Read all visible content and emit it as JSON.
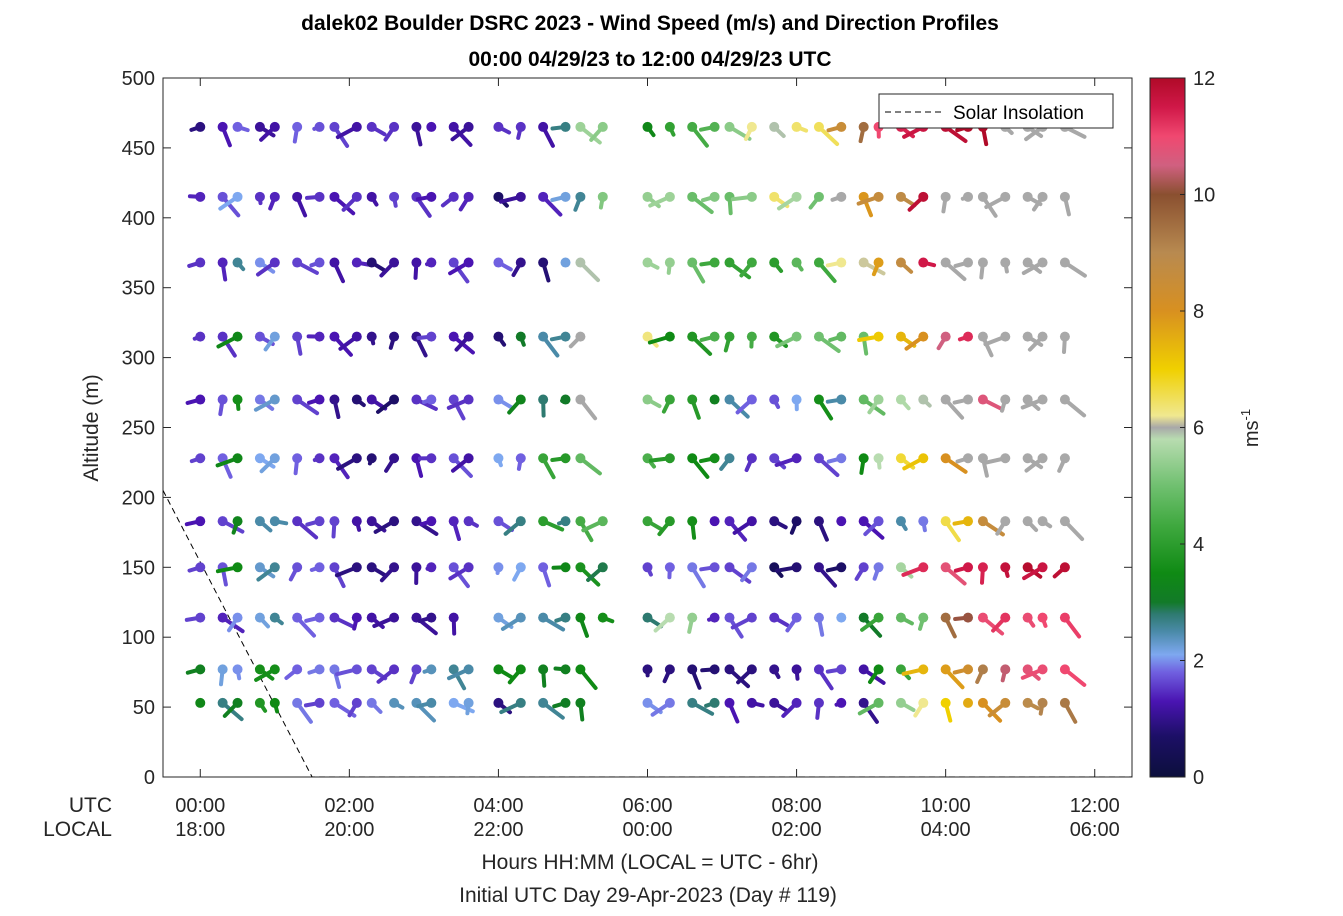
{
  "chart_data": {
    "type": "wind-barb profile",
    "title": "dalek02 Boulder DSRC 2023 - Wind Speed (m/s) and Direction Profiles",
    "subtitle": "00:00 04/29/23 to 12:00 04/29/23  UTC",
    "ylabel": "Altitude (m)",
    "xlabel": "Hours HH:MM  (LOCAL = UTC - 6hr)",
    "xlabel2": "Initial UTC Day 29-Apr-2023 (Day # 119)",
    "xrow_labels": [
      "UTC",
      "LOCAL"
    ],
    "ylim": [
      0,
      500
    ],
    "yticks": [
      0,
      50,
      100,
      150,
      200,
      250,
      300,
      350,
      400,
      450,
      500
    ],
    "xlim_hours": [
      -0.5,
      12.5
    ],
    "xticks_hours": [
      0,
      2,
      4,
      6,
      8,
      10,
      12
    ],
    "xticks_utc": [
      "00:00",
      "02:00",
      "04:00",
      "06:00",
      "08:00",
      "10:00",
      "12:00"
    ],
    "xticks_local": [
      "18:00",
      "20:00",
      "22:00",
      "00:00",
      "02:00",
      "04:00",
      "06:00"
    ],
    "legend": {
      "entry": "Solar Insolation",
      "placement": "top-right"
    },
    "colorbar": {
      "label": "ms-1",
      "range": [
        0,
        12
      ],
      "ticks": [
        0,
        2,
        4,
        6,
        8,
        10,
        12
      ]
    },
    "solar_insolation": {
      "x_hours": [
        -0.5,
        1.5,
        1.5,
        12.5
      ],
      "y_alt": [
        205,
        0,
        0,
        0
      ]
    },
    "levels_m": [
      53,
      77,
      114,
      150,
      183,
      228,
      270,
      315,
      368,
      415,
      465
    ],
    "profile_times_hours": [
      0.0,
      0.3,
      0.5,
      0.8,
      1.0,
      1.3,
      1.6,
      1.8,
      2.1,
      2.3,
      2.6,
      2.9,
      3.1,
      3.4,
      3.6,
      4.0,
      4.3,
      4.6,
      4.9,
      5.1,
      5.4,
      6.0,
      6.3,
      6.6,
      6.9,
      7.1,
      7.4,
      7.7,
      8.0,
      8.3,
      8.6,
      8.9,
      9.1,
      9.4,
      9.7,
      10.0,
      10.3,
      10.5,
      10.8,
      11.1,
      11.3,
      11.6
    ],
    "wind_speed_ms": [
      [
        3.4,
        2.7,
        3.2,
        3.8,
        3.5,
        1.9,
        1.6,
        1.8,
        1.6,
        1.9,
        2.4,
        2.4,
        2.5,
        2.1,
        2.2,
        0.9,
        2.7,
        2.6,
        3.1,
        3.2,
        null,
        2.0,
        1.9,
        2.7,
        2.8,
        1.3,
        1.2,
        1.1,
        1.4,
        1.5,
        1.3,
        1.0,
        4.8,
        5.4,
        6.2,
        7.0,
        7.6,
        8.0,
        8.5,
        8.9,
        9.1,
        9.3
      ],
      [
        3.2,
        2.2,
        2.0,
        3.6,
        3.6,
        1.8,
        1.9,
        1.9,
        1.7,
        1.6,
        1.5,
        1.6,
        2.4,
        2.6,
        2.5,
        3.5,
        3.5,
        3.2,
        3.2,
        3.5,
        null,
        0.9,
        0.9,
        0.8,
        0.8,
        0.9,
        0.9,
        1.0,
        1.1,
        1.5,
        1.6,
        1.2,
        3.5,
        4.2,
        7.4,
        7.8,
        8.3,
        9.2,
        10.4,
        10.8,
        10.9,
        11.0
      ],
      [
        1.6,
        1.4,
        2.0,
        2.2,
        2.6,
        1.8,
        1.8,
        1.5,
        1.3,
        1.2,
        1.1,
        1.1,
        1.0,
        1.2,
        null,
        2.2,
        2.4,
        2.5,
        2.7,
        3.4,
        3.6,
        2.8,
        5.8,
        5.4,
        1.4,
        1.7,
        1.6,
        1.5,
        1.8,
        1.9,
        2.1,
        3.0,
        4.2,
        4.8,
        5.0,
        9.5,
        10.1,
        10.9,
        11.2,
        10.9,
        11.0,
        11.1
      ],
      [
        1.6,
        1.7,
        3.5,
        2.3,
        2.6,
        1.7,
        1.8,
        1.6,
        0.9,
        0.9,
        1.0,
        1.1,
        1.4,
        1.7,
        1.5,
        2.0,
        2.1,
        1.8,
        3.4,
        3.7,
        2.9,
        1.6,
        1.8,
        1.9,
        1.7,
        1.6,
        1.9,
        0.5,
        0.8,
        1.0,
        0.7,
        1.6,
        1.9,
        5.6,
        11.3,
        10.8,
        11.5,
        11.4,
        11.7,
        11.9,
        11.6,
        11.8
      ],
      [
        1.3,
        1.6,
        3.3,
        2.5,
        2.5,
        1.5,
        1.6,
        1.6,
        1.2,
        1.1,
        0.9,
        1.0,
        1.3,
        1.4,
        1.5,
        1.7,
        2.7,
        4.0,
        2.7,
        4.4,
        4.7,
        4.2,
        3.9,
        3.6,
        1.3,
        1.4,
        1.2,
        0.9,
        0.7,
        0.9,
        1.3,
        1.3,
        1.7,
        2.5,
        1.9,
        6.6,
        7.4,
        8.6,
        6.0,
        6.0,
        6.0,
        6.0
      ],
      [
        1.6,
        1.8,
        3.4,
        2.1,
        2.2,
        1.8,
        1.5,
        1.4,
        0.9,
        0.8,
        1.0,
        1.3,
        1.5,
        1.7,
        1.2,
        2.1,
        1.8,
        4.2,
        3.9,
        4.8,
        null,
        4.5,
        3.9,
        3.5,
        3.6,
        2.6,
        1.5,
        1.6,
        1.4,
        1.6,
        1.9,
        3.5,
        5.8,
        6.7,
        7.2,
        8.0,
        6.0,
        6.0,
        6.0,
        6.0,
        6.0,
        6.0
      ],
      [
        1.3,
        1.7,
        3.6,
        1.9,
        2.3,
        1.6,
        1.3,
        1.0,
        0.8,
        1.2,
        0.7,
        1.5,
        1.8,
        1.6,
        1.5,
        2.0,
        3.3,
        2.8,
        3.0,
        6.0,
        null,
        5.3,
        4.2,
        3.9,
        3.2,
        2.5,
        1.8,
        1.7,
        2.1,
        3.6,
        2.5,
        4.8,
        5.5,
        5.7,
        5.9,
        6.0,
        6.0,
        10.7,
        6.0,
        6.0,
        6.0,
        6.0
      ],
      [
        1.5,
        1.5,
        3.4,
        1.7,
        2.2,
        1.6,
        1.4,
        1.3,
        1.2,
        1.0,
        0.9,
        1.0,
        1.6,
        1.3,
        1.1,
        0.8,
        3.0,
        2.5,
        2.6,
        6.0,
        null,
        6.3,
        3.5,
        3.8,
        4.5,
        4.1,
        4.4,
        3.8,
        5.1,
        5.0,
        4.8,
        4.9,
        7.1,
        7.4,
        8.0,
        10.5,
        11.3,
        6.0,
        6.0,
        6.0,
        6.0,
        6.0
      ],
      [
        1.5,
        1.4,
        2.6,
        2.0,
        1.5,
        1.6,
        1.7,
        1.2,
        1.4,
        0.8,
        1.1,
        1.2,
        1.4,
        1.6,
        1.3,
        1.8,
        1.0,
        0.8,
        2.2,
        5.9,
        null,
        5.5,
        5.4,
        4.9,
        4.3,
        4.1,
        4.3,
        4.0,
        4.7,
        4.3,
        6.2,
        6.1,
        7.8,
        8.7,
        11.5,
        6.0,
        6.0,
        6.0,
        6.0,
        6.0,
        6.0,
        6.0
      ],
      [
        1.4,
        1.7,
        2.1,
        1.5,
        1.4,
        1.2,
        1.5,
        1.3,
        1.5,
        1.2,
        1.6,
        1.5,
        1.3,
        1.5,
        1.4,
        0.7,
        1.1,
        1.4,
        2.2,
        2.6,
        5.2,
        5.4,
        5.5,
        4.9,
        5.2,
        4.9,
        5.3,
        6.4,
        5.6,
        5.0,
        6.0,
        7.9,
        8.6,
        8.8,
        11.8,
        6.0,
        6.0,
        6.0,
        6.0,
        6.0,
        6.0,
        6.0
      ],
      [
        0.9,
        1.3,
        1.8,
        1.1,
        1.2,
        1.8,
        1.7,
        1.6,
        1.2,
        1.5,
        1.5,
        1.1,
        1.3,
        1.2,
        1.1,
        1.5,
        1.5,
        1.2,
        2.7,
        5.5,
        5.3,
        3.4,
        4.1,
        4.4,
        4.6,
        5.3,
        6.2,
        5.9,
        6.4,
        6.5,
        8.5,
        9.5,
        11.0,
        11.4,
        11.6,
        11.8,
        12.0,
        12.0,
        6.0,
        6.0,
        6.0,
        6.0
      ]
    ]
  }
}
